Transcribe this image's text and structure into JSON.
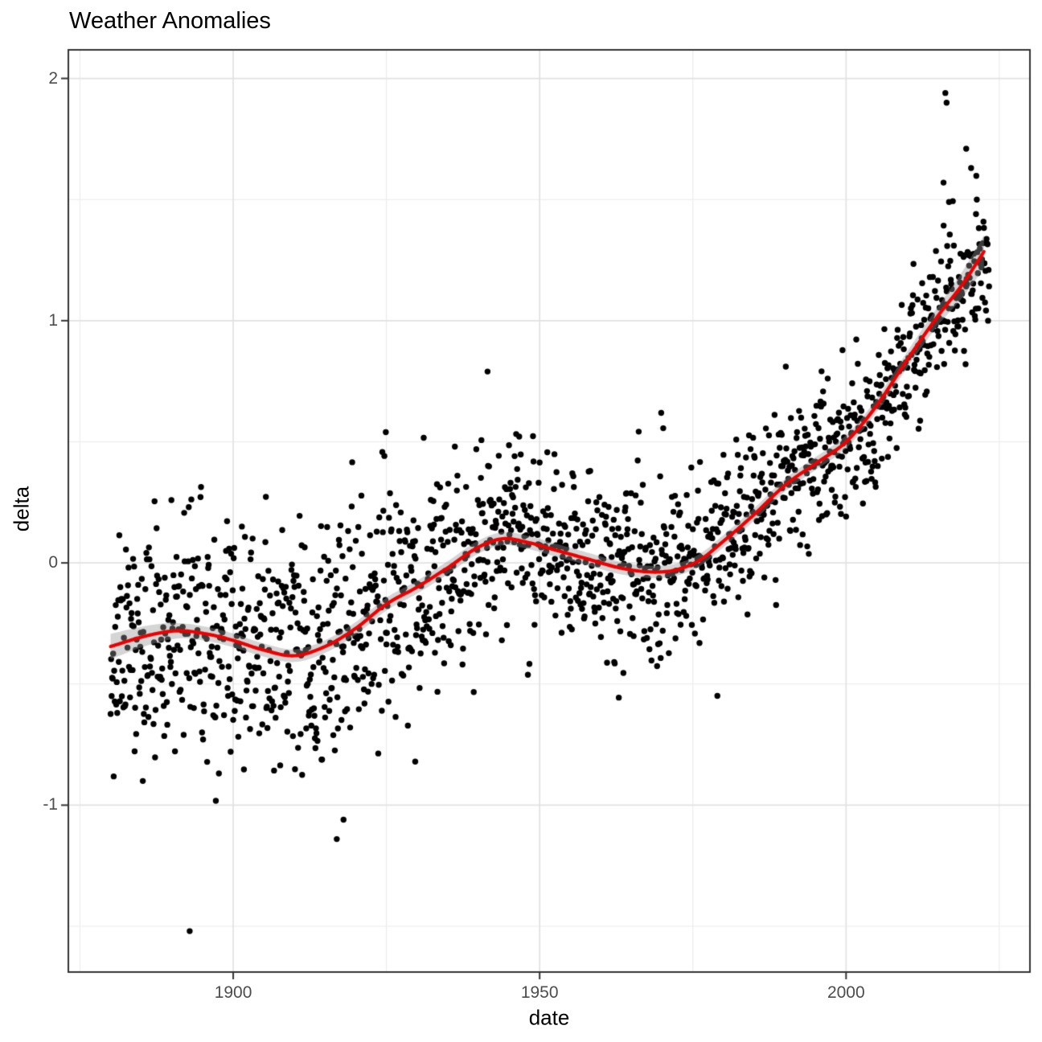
{
  "chart_data": {
    "type": "scatter",
    "title": "Weather Anomalies",
    "xlabel": "date",
    "ylabel": "delta",
    "xlim": [
      1873.1,
      2030.0
    ],
    "ylim": [
      -1.689,
      2.118
    ],
    "grid": "on",
    "x_axis": {
      "major_ticks": [
        1900,
        1950,
        2000
      ],
      "major_labels": [
        "1900",
        "1950",
        "2000"
      ],
      "minor_ticks": [
        1875,
        1925,
        1975,
        2025
      ]
    },
    "y_axis": {
      "major_ticks": [
        -1,
        0,
        1,
        2
      ],
      "major_labels": [
        "-1",
        "0",
        "1",
        "2"
      ],
      "minor_ticks": [
        -1.5,
        -0.5,
        0.5,
        1.5
      ]
    },
    "points": {
      "color": "#000000",
      "radius": 3.7,
      "start_year": 1880.0,
      "end_year": 2023.4,
      "cadence_per_year": 12,
      "seed": 11,
      "sd_profile": [
        [
          1880,
          0.245
        ],
        [
          1910,
          0.235
        ],
        [
          1930,
          0.215
        ],
        [
          1950,
          0.2
        ],
        [
          1970,
          0.19
        ],
        [
          1985,
          0.17
        ],
        [
          2000,
          0.15
        ],
        [
          2023,
          0.13
        ]
      ]
    },
    "notable_points": [
      [
        1892.9,
        -1.52
      ],
      [
        1916.9,
        -1.14
      ],
      [
        1918.0,
        -1.06
      ],
      [
        1924.9,
        0.54
      ],
      [
        1929.7,
        -0.82
      ],
      [
        1941.5,
        0.79
      ],
      [
        2015.9,
        1.57
      ],
      [
        2016.2,
        1.94
      ],
      [
        2016.4,
        1.9
      ],
      [
        2016.8,
        1.49
      ],
      [
        2019.6,
        1.71
      ],
      [
        2020.4,
        1.63
      ],
      [
        2021.2,
        1.44
      ]
    ],
    "smooth": {
      "color": "#ee0000",
      "width": 4.2,
      "start_year": 1880.0,
      "end_year": 2022.5,
      "anchors": [
        [
          1880,
          -0.345
        ],
        [
          1886,
          -0.3
        ],
        [
          1891,
          -0.28
        ],
        [
          1896,
          -0.295
        ],
        [
          1900,
          -0.32
        ],
        [
          1905,
          -0.36
        ],
        [
          1910,
          -0.383
        ],
        [
          1915,
          -0.345
        ],
        [
          1920,
          -0.27
        ],
        [
          1925,
          -0.17
        ],
        [
          1930,
          -0.1
        ],
        [
          1935,
          -0.02
        ],
        [
          1940,
          0.065
        ],
        [
          1944,
          0.1
        ],
        [
          1948,
          0.085
        ],
        [
          1953,
          0.05
        ],
        [
          1958,
          0.015
        ],
        [
          1963,
          -0.02
        ],
        [
          1968,
          -0.037
        ],
        [
          1972,
          -0.03
        ],
        [
          1976,
          0.01
        ],
        [
          1980,
          0.09
        ],
        [
          1985,
          0.2
        ],
        [
          1990,
          0.32
        ],
        [
          1995,
          0.41
        ],
        [
          2000,
          0.5
        ],
        [
          2005,
          0.65
        ],
        [
          2010,
          0.84
        ],
        [
          2015,
          1.02
        ],
        [
          2019,
          1.15
        ],
        [
          2022.5,
          1.285
        ]
      ],
      "band": {
        "color": "rgba(150,150,150,0.40)",
        "halfwidth_profile": [
          [
            1880,
            0.052
          ],
          [
            1892,
            0.03
          ],
          [
            1910,
            0.026
          ],
          [
            1940,
            0.027
          ],
          [
            1950,
            0.027
          ],
          [
            1970,
            0.025
          ],
          [
            1990,
            0.026
          ],
          [
            2005,
            0.028
          ],
          [
            2015,
            0.038
          ],
          [
            2022.5,
            0.068
          ]
        ]
      }
    },
    "style": {
      "panel_bg": "#ffffff",
      "panel_border_color": "#333333",
      "grid_major_color": "#e2e2e2",
      "grid_minor_color": "#ebebeb",
      "tick_color": "#333333",
      "tick_label_color": "#4d4d4d",
      "title_color": "#000000",
      "axis_title_color": "#000000"
    }
  }
}
